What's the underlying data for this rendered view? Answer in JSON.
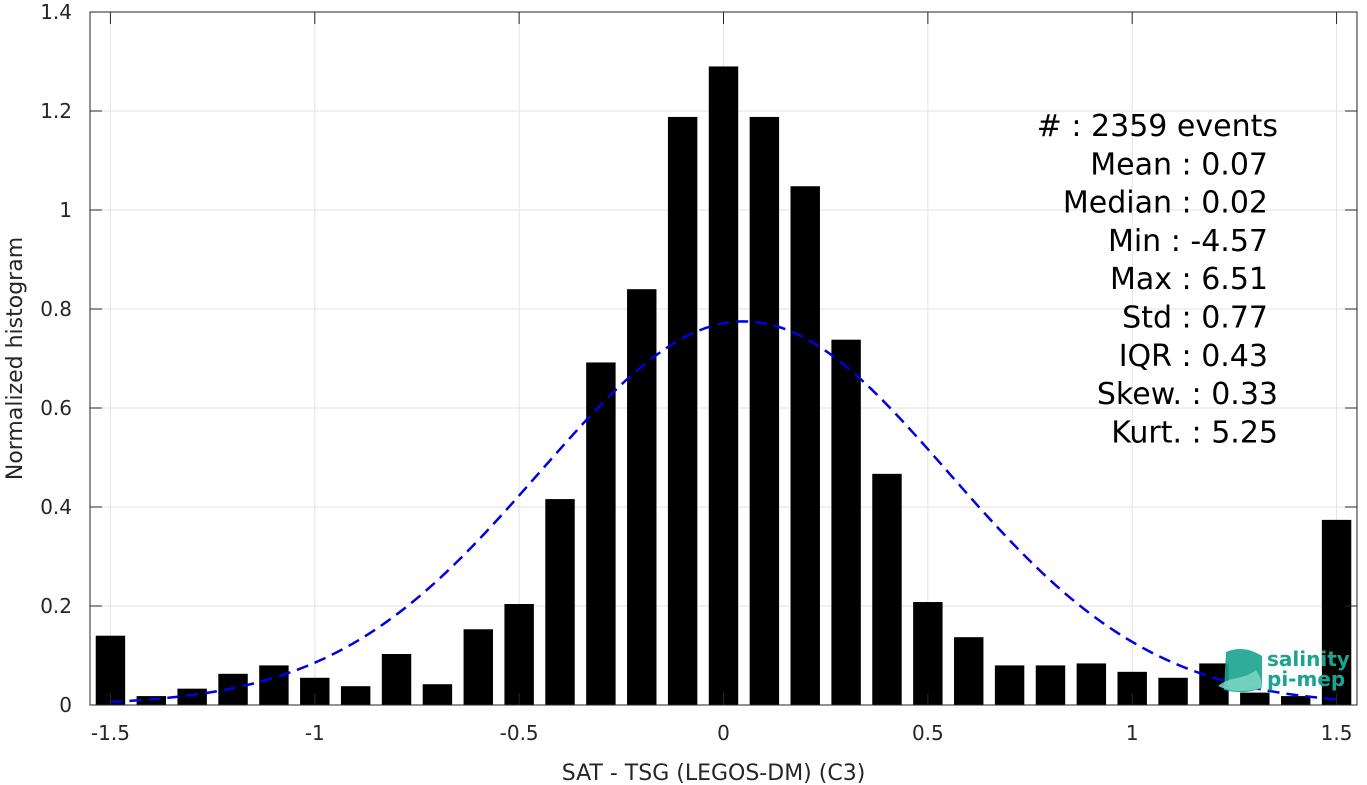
{
  "chart_data": {
    "type": "bar",
    "xlabel": "SAT - TSG (LEGOS-DM) (C3)",
    "ylabel": "Normalized histogram",
    "xlim": [
      -1.55,
      1.55
    ],
    "ylim": [
      0,
      1.4
    ],
    "x_ticks": [
      -1.5,
      -1,
      -0.5,
      0,
      0.5,
      1,
      1.5
    ],
    "x_tick_labels": [
      "-1.5",
      "-1",
      "-0.5",
      "0",
      "0.5",
      "1",
      "1.5"
    ],
    "y_ticks": [
      0,
      0.2,
      0.4,
      0.6,
      0.8,
      1,
      1.2,
      1.4
    ],
    "y_tick_labels": [
      "0",
      "0.2",
      "0.4",
      "0.6",
      "0.8",
      "1",
      "1.2",
      "1.4"
    ],
    "grid": true,
    "bar_color": "#000000",
    "bins": [
      {
        "x": -1.5,
        "value": 0.14
      },
      {
        "x": -1.4,
        "value": 0.018
      },
      {
        "x": -1.3,
        "value": 0.033
      },
      {
        "x": -1.2,
        "value": 0.063
      },
      {
        "x": -1.1,
        "value": 0.08
      },
      {
        "x": -1.0,
        "value": 0.055
      },
      {
        "x": -0.9,
        "value": 0.038
      },
      {
        "x": -0.8,
        "value": 0.103
      },
      {
        "x": -0.7,
        "value": 0.042
      },
      {
        "x": -0.6,
        "value": 0.153
      },
      {
        "x": -0.5,
        "value": 0.204
      },
      {
        "x": -0.4,
        "value": 0.416
      },
      {
        "x": -0.3,
        "value": 0.692
      },
      {
        "x": -0.2,
        "value": 0.84
      },
      {
        "x": -0.1,
        "value": 1.188
      },
      {
        "x": 0.0,
        "value": 1.29
      },
      {
        "x": 0.1,
        "value": 1.188
      },
      {
        "x": 0.2,
        "value": 1.048
      },
      {
        "x": 0.3,
        "value": 0.738
      },
      {
        "x": 0.4,
        "value": 0.467
      },
      {
        "x": 0.5,
        "value": 0.208
      },
      {
        "x": 0.6,
        "value": 0.137
      },
      {
        "x": 0.7,
        "value": 0.08
      },
      {
        "x": 0.8,
        "value": 0.08
      },
      {
        "x": 0.9,
        "value": 0.084
      },
      {
        "x": 1.0,
        "value": 0.067
      },
      {
        "x": 1.1,
        "value": 0.055
      },
      {
        "x": 1.2,
        "value": 0.084
      },
      {
        "x": 1.3,
        "value": 0.025
      },
      {
        "x": 1.4,
        "value": 0.018
      },
      {
        "x": 1.5,
        "value": 0.374
      }
    ],
    "fit": {
      "type": "gaussian",
      "mean": 0.05,
      "std": 0.5,
      "peak": 0.775,
      "x_range": [
        -1.5,
        1.5
      ],
      "color": "#0000e0",
      "style": "dashed"
    },
    "stats": [
      "#  : 2359 events",
      "Mean : 0.07",
      "Median : 0.02",
      "Min : -4.57",
      "Max : 6.51",
      "Std : 0.77",
      "IQR : 0.43",
      "Skew. : 0.33",
      "Kurt. : 5.25"
    ]
  },
  "logo": {
    "line1": "salinity",
    "line2": "pi-mep",
    "color": "#1aa38f"
  }
}
